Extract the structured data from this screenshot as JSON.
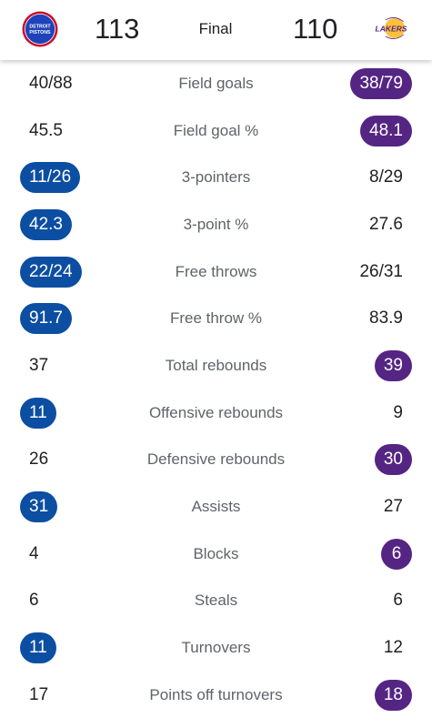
{
  "header": {
    "home_team": {
      "score": "113",
      "logo_text_1": "DETROIT",
      "logo_text_2": "PISTONS",
      "color": "#0c4ea2",
      "accent": "#c8102e",
      "icon": "pistons-logo-icon"
    },
    "away_team": {
      "score": "110",
      "logo_text": "LAKERS",
      "color": "#552583",
      "accent": "#fdb927",
      "icon": "lakers-logo-icon"
    },
    "status": "Final"
  },
  "stats": [
    {
      "label": "Field goals",
      "home": "40/88",
      "away": "38/79",
      "leader": "away"
    },
    {
      "label": "Field goal %",
      "home": "45.5",
      "away": "48.1",
      "leader": "away"
    },
    {
      "label": "3-pointers",
      "home": "11/26",
      "away": "8/29",
      "leader": "home"
    },
    {
      "label": "3-point %",
      "home": "42.3",
      "away": "27.6",
      "leader": "home"
    },
    {
      "label": "Free throws",
      "home": "22/24",
      "away": "26/31",
      "leader": "home"
    },
    {
      "label": "Free throw %",
      "home": "91.7",
      "away": "83.9",
      "leader": "home"
    },
    {
      "label": "Total rebounds",
      "home": "37",
      "away": "39",
      "leader": "away"
    },
    {
      "label": "Offensive rebounds",
      "home": "11",
      "away": "9",
      "leader": "home"
    },
    {
      "label": "Defensive rebounds",
      "home": "26",
      "away": "30",
      "leader": "away"
    },
    {
      "label": "Assists",
      "home": "31",
      "away": "27",
      "leader": "home"
    },
    {
      "label": "Blocks",
      "home": "4",
      "away": "6",
      "leader": "away"
    },
    {
      "label": "Steals",
      "home": "6",
      "away": "6",
      "leader": "none"
    },
    {
      "label": "Turnovers",
      "home": "11",
      "away": "12",
      "leader": "home"
    },
    {
      "label": "Points off turnovers",
      "home": "17",
      "away": "18",
      "leader": "away"
    }
  ],
  "colors": {
    "home_highlight": "#0c4ea2",
    "away_highlight": "#552583",
    "label": "#5f6368",
    "text": "#202124"
  }
}
